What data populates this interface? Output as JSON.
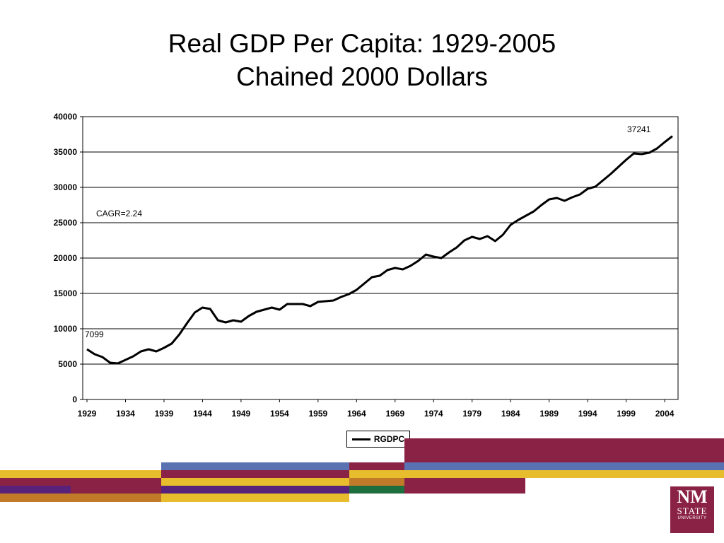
{
  "slide": {
    "title_line1": "Real GDP Per Capita: 1929-2005",
    "title_line2": "Chained 2000 Dollars"
  },
  "colors": {
    "maroon": "#8a2246",
    "gold": "#e7bd2d",
    "blue": "#5b72b2",
    "purple": "#58217a",
    "orange": "#c07a28",
    "green": "#1e6e3e",
    "line": "#000000"
  },
  "logo": {
    "line1": "NM",
    "line2": "STATE",
    "line3": "UNIVERSITY"
  },
  "chart_data": {
    "type": "line",
    "title": "",
    "xlabel": "",
    "ylabel": "",
    "ylim": [
      0,
      40000
    ],
    "yticks": [
      "0",
      "5000",
      "10000",
      "15000",
      "20000",
      "25000",
      "30000",
      "35000",
      "40000"
    ],
    "xticks": [
      "1929",
      "1934",
      "1939",
      "1944",
      "1949",
      "1954",
      "1959",
      "1964",
      "1969",
      "1974",
      "1979",
      "1984",
      "1989",
      "1994",
      "1999",
      "2004"
    ],
    "grid": "horizontal",
    "legend_position": "bottom",
    "annotations": [
      "7099",
      "37241",
      "CAGR=2.24"
    ],
    "x": [
      1929,
      1930,
      1931,
      1932,
      1933,
      1934,
      1935,
      1936,
      1937,
      1938,
      1939,
      1940,
      1941,
      1942,
      1943,
      1944,
      1945,
      1946,
      1947,
      1948,
      1949,
      1950,
      1951,
      1952,
      1953,
      1954,
      1955,
      1956,
      1957,
      1958,
      1959,
      1960,
      1961,
      1962,
      1963,
      1964,
      1965,
      1966,
      1967,
      1968,
      1969,
      1970,
      1971,
      1972,
      1973,
      1974,
      1975,
      1976,
      1977,
      1978,
      1979,
      1980,
      1981,
      1982,
      1983,
      1984,
      1985,
      1986,
      1987,
      1988,
      1989,
      1990,
      1991,
      1992,
      1993,
      1994,
      1995,
      1996,
      1997,
      1998,
      1999,
      2000,
      2001,
      2002,
      2003,
      2004,
      2005
    ],
    "series": [
      {
        "name": "RGDPC",
        "values": [
          7099,
          6400,
          6000,
          5200,
          5100,
          5600,
          6100,
          6800,
          7100,
          6800,
          7300,
          7900,
          9200,
          10800,
          12300,
          13000,
          12800,
          11200,
          10900,
          11200,
          11000,
          11800,
          12400,
          12700,
          13000,
          12700,
          13500,
          13500,
          13500,
          13200,
          13800,
          13900,
          14000,
          14500,
          14900,
          15500,
          16400,
          17300,
          17500,
          18300,
          18600,
          18400,
          18900,
          19600,
          20500,
          20200,
          20000,
          20800,
          21500,
          22500,
          23000,
          22700,
          23100,
          22400,
          23300,
          24700,
          25400,
          26000,
          26600,
          27500,
          28300,
          28500,
          28100,
          28600,
          29000,
          29800,
          30100,
          31000,
          31900,
          32900,
          33900,
          34800,
          34700,
          34900,
          35500,
          36400,
          37241
        ]
      }
    ]
  }
}
